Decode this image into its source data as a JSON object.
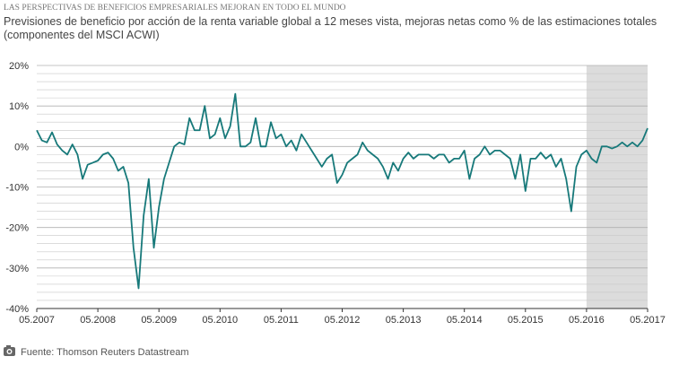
{
  "chart_data": {
    "type": "line",
    "title": "LAS PERSPECTIVAS DE BENEFICIOS EMPRESARIALES MEJORAN EN TODO EL MUNDO",
    "subtitle": "Previsiones de beneficio por acción de la renta variable global a 12 meses vista, mejoras netas como % de las estimaciones totales (componentes del MSCI ACWI)",
    "source": "Fuente: Thomson Reuters Datastream",
    "color": "#17797a",
    "x": [
      "05.2007",
      "06.2007",
      "07.2007",
      "08.2007",
      "09.2007",
      "10.2007",
      "11.2007",
      "12.2007",
      "01.2008",
      "02.2008",
      "03.2008",
      "04.2008",
      "05.2008",
      "06.2008",
      "07.2008",
      "08.2008",
      "09.2008",
      "10.2008",
      "11.2008",
      "12.2008",
      "01.2009",
      "02.2009",
      "03.2009",
      "04.2009",
      "05.2009",
      "06.2009",
      "07.2009",
      "08.2009",
      "09.2009",
      "10.2009",
      "11.2009",
      "12.2009",
      "01.2010",
      "02.2010",
      "03.2010",
      "04.2010",
      "05.2010",
      "06.2010",
      "07.2010",
      "08.2010",
      "09.2010",
      "10.2010",
      "11.2010",
      "12.2010",
      "01.2011",
      "02.2011",
      "03.2011",
      "04.2011",
      "05.2011",
      "06.2011",
      "07.2011",
      "08.2011",
      "09.2011",
      "10.2011",
      "11.2011",
      "12.2011",
      "01.2012",
      "02.2012",
      "03.2012",
      "04.2012",
      "05.2012",
      "06.2012",
      "07.2012",
      "08.2012",
      "09.2012",
      "10.2012",
      "11.2012",
      "12.2012",
      "01.2013",
      "02.2013",
      "03.2013",
      "04.2013",
      "05.2013",
      "06.2013",
      "07.2013",
      "08.2013",
      "09.2013",
      "10.2013",
      "11.2013",
      "12.2013",
      "01.2014",
      "02.2014",
      "03.2014",
      "04.2014",
      "05.2014",
      "06.2014",
      "07.2014",
      "08.2014",
      "09.2014",
      "10.2014",
      "11.2014",
      "12.2014",
      "01.2015",
      "02.2015",
      "03.2015",
      "04.2015",
      "05.2015",
      "06.2015",
      "07.2015",
      "08.2015",
      "09.2015",
      "10.2015",
      "11.2015",
      "12.2015",
      "01.2016",
      "02.2016",
      "03.2016",
      "04.2016",
      "05.2016",
      "06.2016",
      "07.2016",
      "08.2016",
      "09.2016",
      "10.2016",
      "11.2016",
      "12.2016",
      "01.2017",
      "02.2017",
      "03.2017",
      "04.2017",
      "05.2017"
    ],
    "values": [
      4,
      1.5,
      1,
      3.5,
      0.5,
      -1,
      -2,
      0.5,
      -2,
      -8,
      -4.5,
      -4,
      -3.5,
      -2,
      -1.5,
      -3,
      -6,
      -5,
      -9,
      -25,
      -35,
      -17,
      -8,
      -25,
      -15,
      -8,
      -4,
      0,
      1,
      0.5,
      7,
      4,
      4,
      10,
      2,
      3,
      7,
      2,
      5,
      13,
      0,
      0,
      1,
      7,
      0,
      0,
      6,
      2,
      3,
      0,
      1.5,
      -1,
      3,
      1,
      -1,
      -3,
      -5,
      -3,
      -2,
      -9,
      -7,
      -4,
      -3,
      -2,
      1,
      -1,
      -2,
      -3,
      -5,
      -8,
      -4,
      -6,
      -3,
      -1.5,
      -3,
      -2,
      -2,
      -2,
      -3,
      -2,
      -2,
      -4,
      -3,
      -3,
      -1,
      -8,
      -3,
      -2,
      0,
      -2,
      -1,
      -1,
      -2,
      -3,
      -8,
      -2,
      -11,
      -3,
      -3,
      -1.5,
      -3,
      -2,
      -5,
      -3,
      -8,
      -16,
      -5,
      -2,
      -1,
      -3,
      -4,
      0,
      0,
      -0.5,
      0,
      1,
      0,
      1,
      0,
      1.5,
      4.5
    ],
    "xticks": [
      "05.2007",
      "05.2008",
      "05.2009",
      "05.2010",
      "05.2011",
      "05.2012",
      "05.2013",
      "05.2014",
      "05.2015",
      "05.2016",
      "05.2017"
    ],
    "ylim": [
      -40,
      20
    ],
    "yticks": [
      {
        "value": -40,
        "label": "-40%"
      },
      {
        "value": -30,
        "label": "-30%"
      },
      {
        "value": -20,
        "label": "-20%"
      },
      {
        "value": -10,
        "label": "-10%"
      },
      {
        "value": 0,
        "label": "0%"
      },
      {
        "value": 10,
        "label": "10%"
      },
      {
        "value": 20,
        "label": "20%"
      }
    ],
    "minor_yticks": [
      -38,
      -36,
      -34,
      -32,
      -28,
      -26,
      -24,
      -22,
      -18,
      -16,
      -14,
      -12,
      -8,
      -6,
      -4,
      -2,
      2,
      4,
      6,
      8,
      12,
      14,
      16,
      18
    ],
    "shaded_range": [
      "05.2016",
      "05.2017"
    ],
    "grid": true
  }
}
